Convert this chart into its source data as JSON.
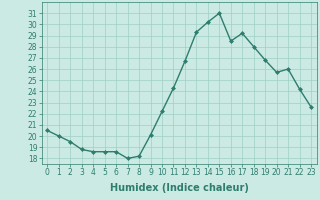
{
  "x": [
    0,
    1,
    2,
    3,
    4,
    5,
    6,
    7,
    8,
    9,
    10,
    11,
    12,
    13,
    14,
    15,
    16,
    17,
    18,
    19,
    20,
    21,
    22,
    23
  ],
  "y": [
    20.5,
    20.0,
    19.5,
    18.8,
    18.6,
    18.6,
    18.6,
    18.0,
    18.2,
    20.1,
    22.2,
    24.3,
    26.7,
    29.3,
    30.2,
    31.0,
    28.5,
    29.2,
    28.0,
    26.8,
    25.7,
    26.0,
    24.2,
    22.6
  ],
  "line_color": "#2e7d6e",
  "marker": "D",
  "marker_size": 2,
  "bg_color": "#cceae4",
  "grid_color": "#9ecfc7",
  "xlabel": "Humidex (Indice chaleur)",
  "ylabel": "",
  "ylim": [
    17.5,
    32.0
  ],
  "xlim": [
    -0.5,
    23.5
  ],
  "yticks": [
    18,
    19,
    20,
    21,
    22,
    23,
    24,
    25,
    26,
    27,
    28,
    29,
    30,
    31
  ],
  "xticks": [
    0,
    1,
    2,
    3,
    4,
    5,
    6,
    7,
    8,
    9,
    10,
    11,
    12,
    13,
    14,
    15,
    16,
    17,
    18,
    19,
    20,
    21,
    22,
    23
  ],
  "tick_label_fontsize": 5.5,
  "xlabel_fontsize": 7.0,
  "line_width": 1.0,
  "tick_color": "#2e7d6e"
}
